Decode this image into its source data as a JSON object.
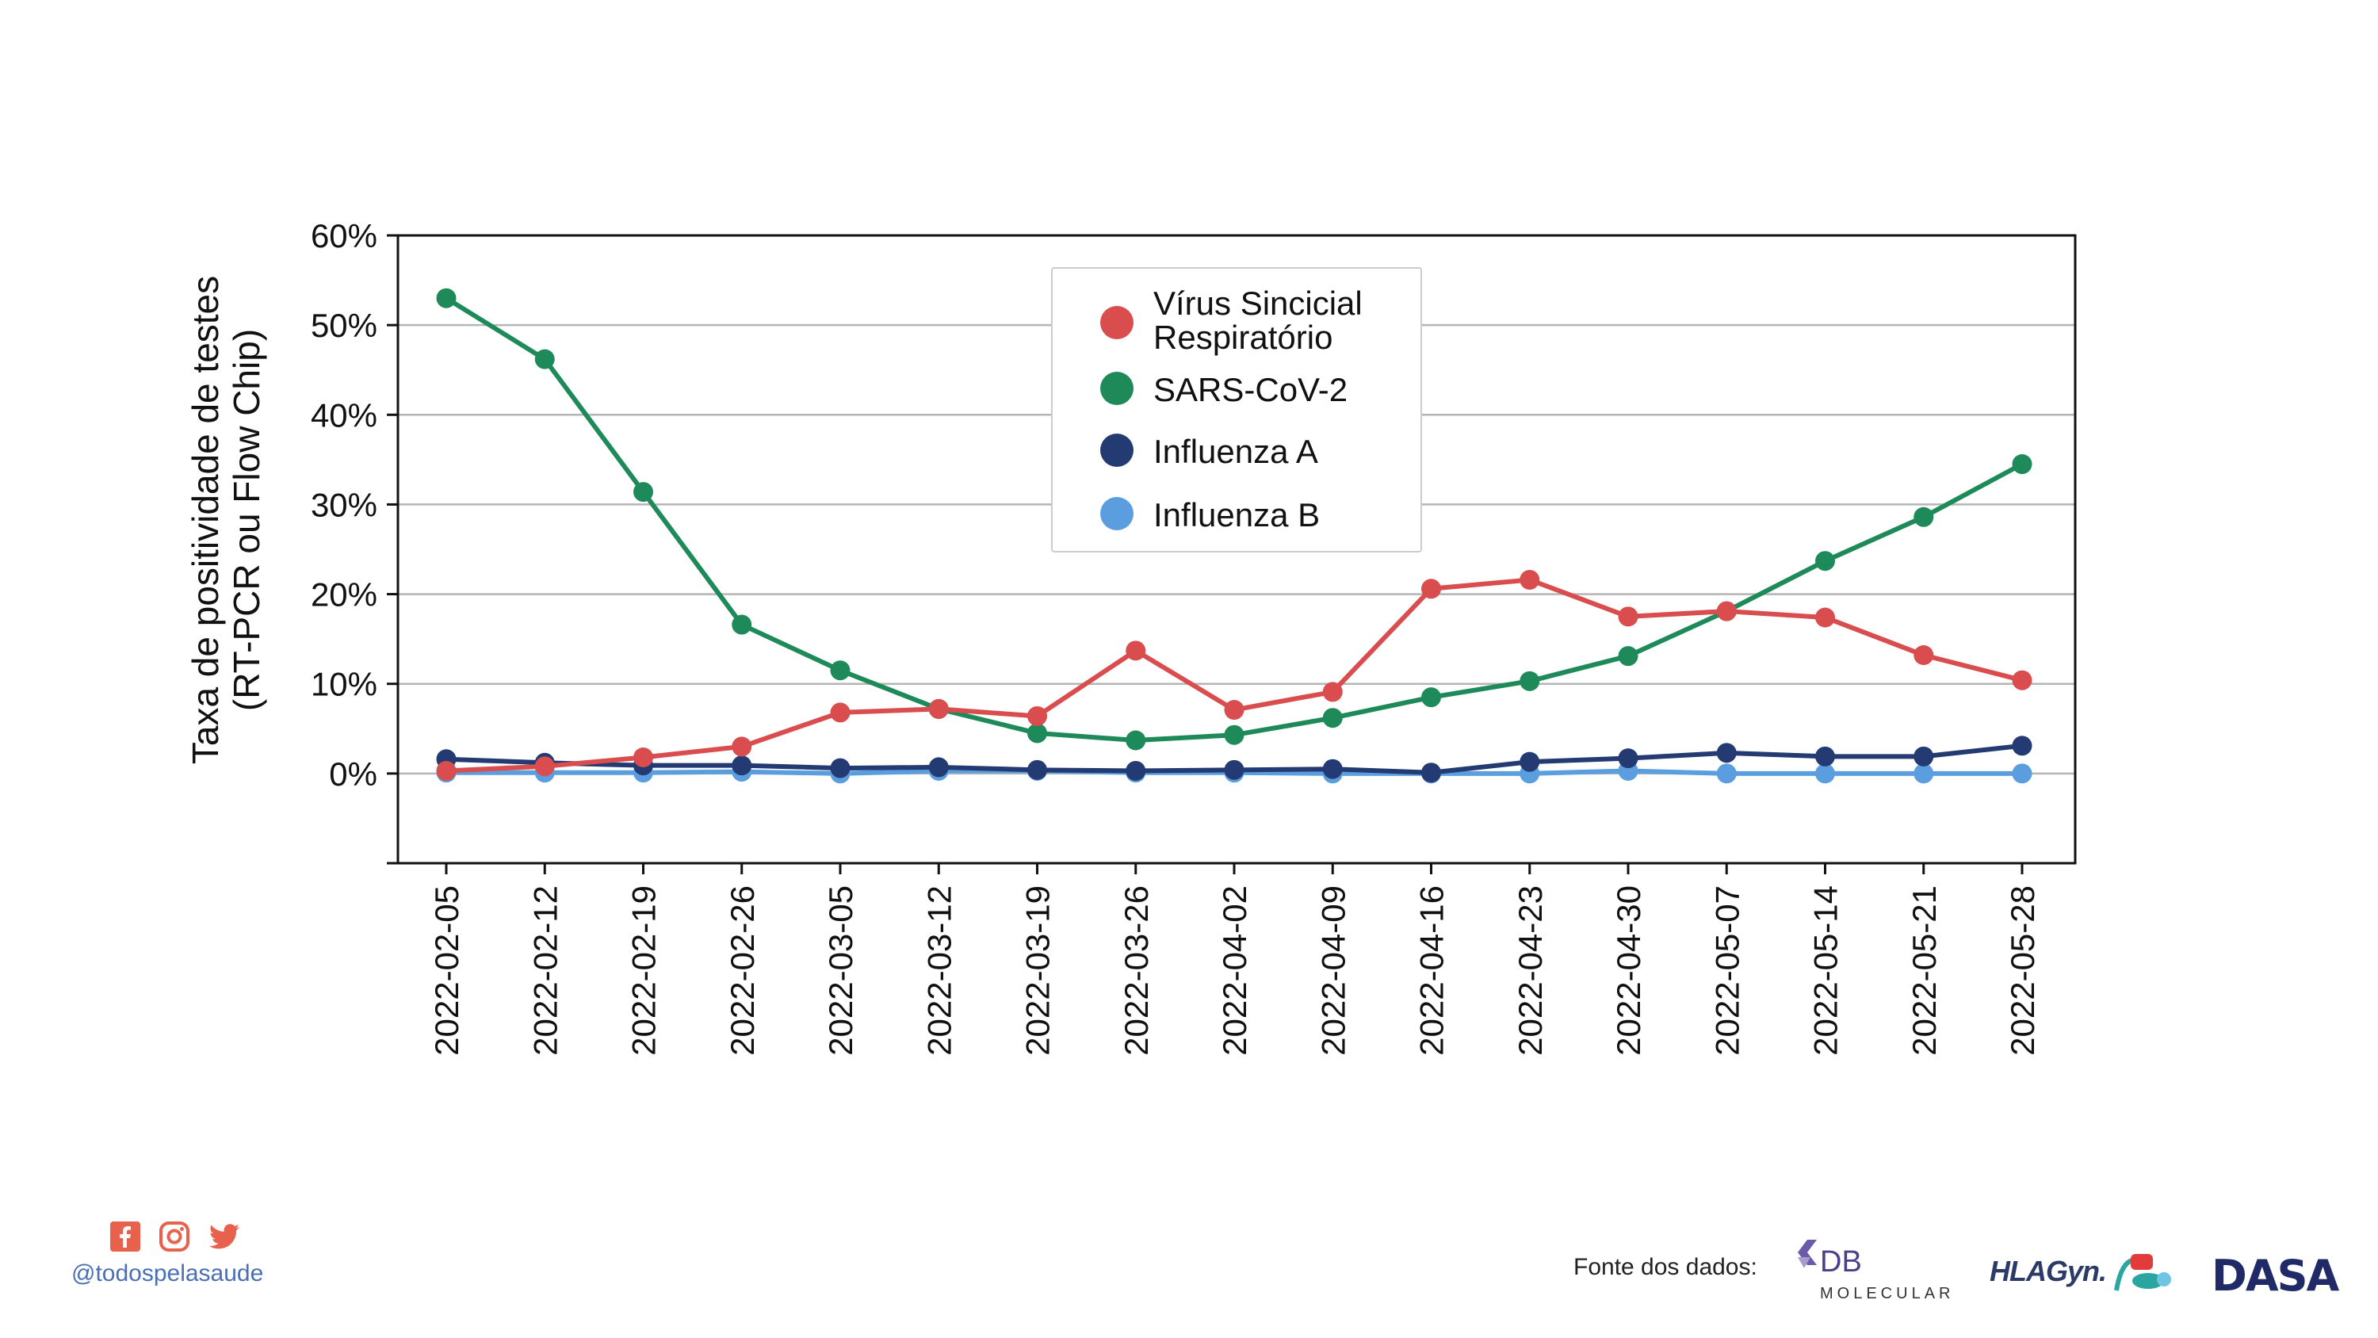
{
  "colors": {
    "rsv": "#d94d4f",
    "sars": "#1e8a5a",
    "fluA": "#243a73",
    "fluB": "#5a9ee0",
    "social": "#e8614d",
    "handle": "#4a6fb5"
  },
  "chart_data": {
    "type": "line",
    "ylabel_line1": "Taxa de positividade de testes",
    "ylabel_line2": "(RT-PCR ou Flow Chip)",
    "xlabel": "",
    "ylim": [
      -10,
      60
    ],
    "yticks": [
      0,
      10,
      20,
      30,
      40,
      50,
      60
    ],
    "ytick_labels": [
      "0%",
      "10%",
      "20%",
      "30%",
      "40%",
      "50%",
      "60%"
    ],
    "grid": "horizontal",
    "legend_position": "top-center",
    "categories": [
      "2022-02-05",
      "2022-02-12",
      "2022-02-19",
      "2022-02-26",
      "2022-03-05",
      "2022-03-12",
      "2022-03-19",
      "2022-03-26",
      "2022-04-02",
      "2022-04-09",
      "2022-04-16",
      "2022-04-23",
      "2022-04-30",
      "2022-05-07",
      "2022-05-14",
      "2022-05-21",
      "2022-05-28"
    ],
    "series": [
      {
        "key": "rsv",
        "name_line1": "Vírus Sincicial",
        "name_line2": "Respiratório",
        "values": [
          0.3,
          0.8,
          1.8,
          3.0,
          6.8,
          7.2,
          6.4,
          13.7,
          7.1,
          9.1,
          20.6,
          21.6,
          17.5,
          18.1,
          17.4,
          13.2,
          10.4
        ]
      },
      {
        "key": "sars",
        "name_line1": "SARS-CoV-2",
        "name_line2": "",
        "values": [
          53.0,
          46.2,
          31.4,
          16.6,
          11.5,
          7.2,
          4.5,
          3.7,
          4.3,
          6.2,
          8.5,
          10.3,
          13.1,
          18.1,
          23.7,
          28.6,
          34.5
        ]
      },
      {
        "key": "fluA",
        "name_line1": "Influenza A",
        "name_line2": "",
        "values": [
          1.6,
          1.2,
          0.9,
          0.9,
          0.6,
          0.7,
          0.4,
          0.3,
          0.4,
          0.5,
          0.1,
          1.3,
          1.7,
          2.3,
          1.9,
          1.9,
          3.1
        ]
      },
      {
        "key": "fluB",
        "name_line1": "Influenza B",
        "name_line2": "",
        "values": [
          0.1,
          0.1,
          0.1,
          0.2,
          0.0,
          0.3,
          0.3,
          0.1,
          0.1,
          0.0,
          0.0,
          0.0,
          0.3,
          0.0,
          0.0,
          0.0,
          0.0
        ]
      }
    ]
  },
  "footer": {
    "handle": "@todospelasaude",
    "source_label": "Fonte dos dados:",
    "logos": {
      "db_molecular": "DB",
      "db_molecular_sub": "MOLECULAR",
      "hlagyn": "HLAGyn.",
      "dasa": "DASA"
    },
    "icons": [
      "facebook-icon",
      "instagram-icon",
      "twitter-icon"
    ]
  }
}
